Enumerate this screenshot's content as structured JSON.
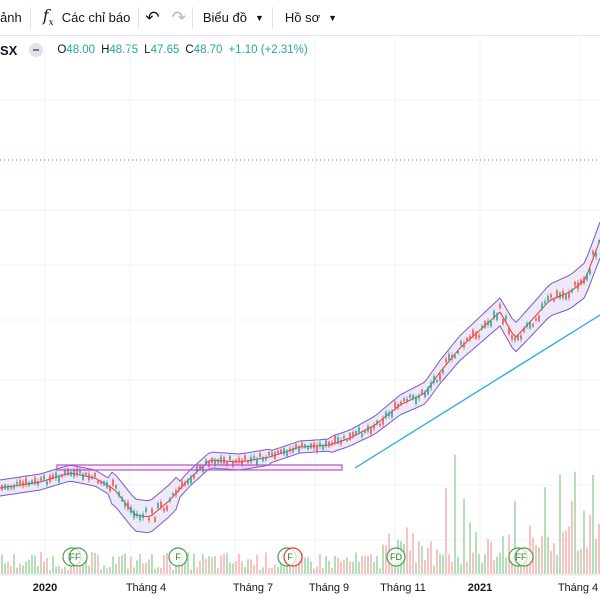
{
  "toolbar": {
    "partial_label": "ảnh",
    "indicators_label": "Các chỉ báo",
    "chart_menu_label": "Biểu đồ",
    "profile_menu_label": "Hồ sơ"
  },
  "legend": {
    "symbol_partial": "SX",
    "open_label": "O",
    "open": "48.00",
    "high_label": "H",
    "high": "48.75",
    "low_label": "L",
    "low": "47.65",
    "close_label": "C",
    "close": "48.70",
    "change": "+1.10 (+2.31%)"
  },
  "colors": {
    "up": "#26a69a",
    "down": "#ef5350",
    "bollinger_band": "#7e57c2",
    "band_fill": "#e8e3f7",
    "basis": "#e53935",
    "trendline": "#29a8e0",
    "rectangle": "#b84fc9",
    "dotted_line": "#26a69a",
    "event_marker": "#43a047"
  },
  "x_axis": {
    "labels": [
      {
        "text": "2020",
        "bold": true
      },
      {
        "text": "Tháng 4",
        "bold": false
      },
      {
        "text": "Tháng 7",
        "bold": false
      },
      {
        "text": "Tháng 9",
        "bold": false
      },
      {
        "text": "Tháng 11",
        "bold": false
      },
      {
        "text": "2021",
        "bold": true
      },
      {
        "text": "Tháng 4",
        "bold": false
      }
    ]
  },
  "event_markers": [
    {
      "label": "FF"
    },
    {
      "label": "F"
    },
    {
      "label": "F"
    },
    {
      "label": "FD"
    },
    {
      "label": "F"
    },
    {
      "label": "FF"
    }
  ]
}
